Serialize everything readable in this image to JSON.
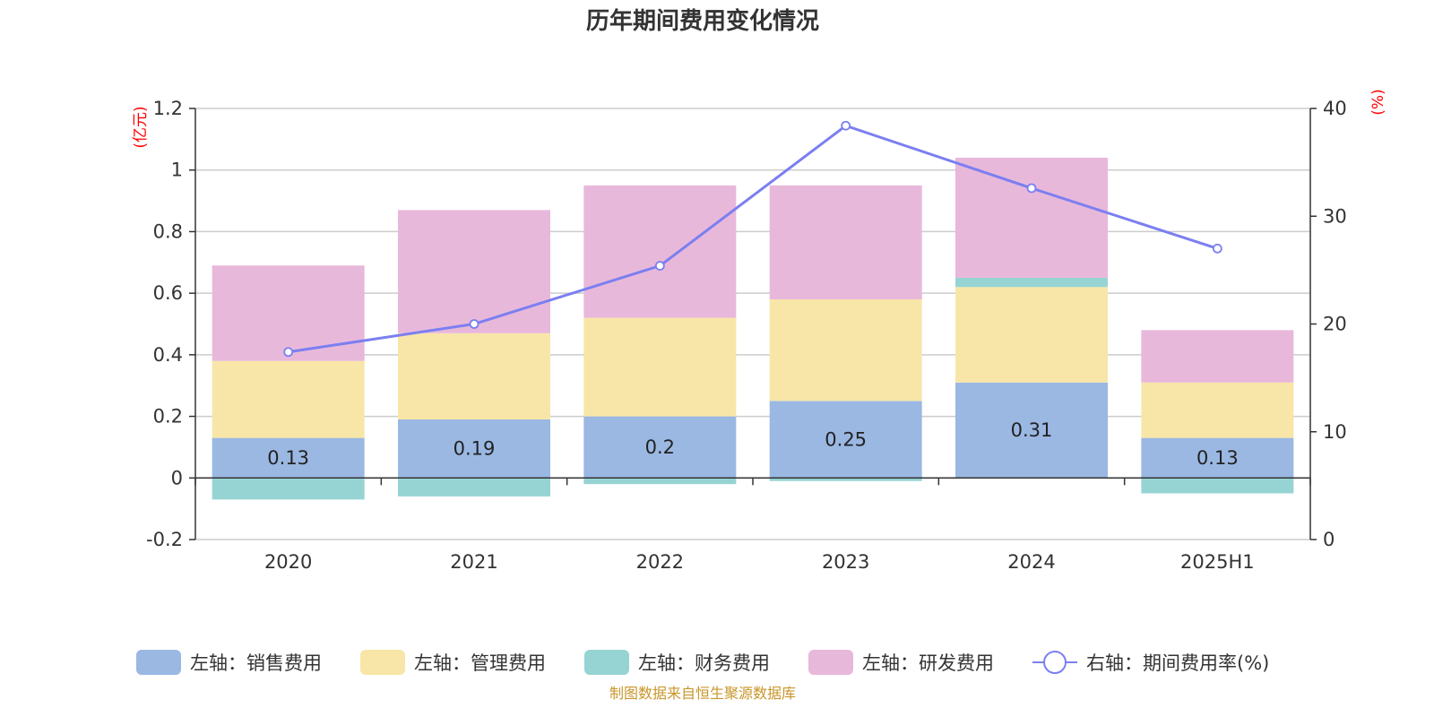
{
  "chart_data": {
    "type": "bar",
    "title": "历年期间费用变化情况",
    "categories": [
      "2020",
      "2021",
      "2022",
      "2023",
      "2024",
      "2025H1"
    ],
    "left_axis": {
      "unit": "(亿元)",
      "ylim": [
        -0.2,
        1.2
      ],
      "ticks": [
        -0.2,
        0,
        0.2,
        0.4,
        0.6,
        0.8,
        1,
        1.2
      ],
      "tick_labels": [
        "-0.2",
        "0",
        "0.2",
        "0.4",
        "0.6",
        "0.8",
        "1",
        "1.2"
      ]
    },
    "right_axis": {
      "unit": "(%)",
      "ylim": [
        0,
        40
      ],
      "ticks": [
        0,
        10,
        20,
        30,
        40
      ],
      "tick_labels": [
        "0",
        "10",
        "20",
        "30",
        "40"
      ]
    },
    "series": [
      {
        "name": "左轴：销售费用",
        "type": "bar",
        "axis": "left",
        "color": "#9bb8e3",
        "values": [
          0.13,
          0.19,
          0.2,
          0.25,
          0.31,
          0.13
        ],
        "labels": [
          "0.13",
          "0.19",
          "0.2",
          "0.25",
          "0.31",
          "0.13"
        ]
      },
      {
        "name": "左轴：管理费用",
        "type": "bar",
        "axis": "left",
        "color": "#f8e6a8",
        "values": [
          0.25,
          0.28,
          0.32,
          0.33,
          0.31,
          0.18
        ]
      },
      {
        "name": "左轴：财务费用",
        "type": "bar",
        "axis": "left",
        "color": "#96d4d4",
        "values": [
          -0.07,
          -0.06,
          -0.02,
          -0.01,
          0.03,
          -0.05
        ]
      },
      {
        "name": "左轴：研发费用",
        "type": "bar",
        "axis": "left",
        "color": "#e8b8db",
        "values": [
          0.31,
          0.4,
          0.43,
          0.37,
          0.39,
          0.17
        ]
      },
      {
        "name": "右轴：期间费用率(%)",
        "type": "line",
        "axis": "right",
        "color": "#7b7ff0",
        "values": [
          17.4,
          20.0,
          25.4,
          38.4,
          32.6,
          27.0
        ]
      }
    ],
    "grid": true,
    "legend_position": "bottom"
  },
  "footer": {
    "source": "制图数据来自恒生聚源数据库"
  }
}
